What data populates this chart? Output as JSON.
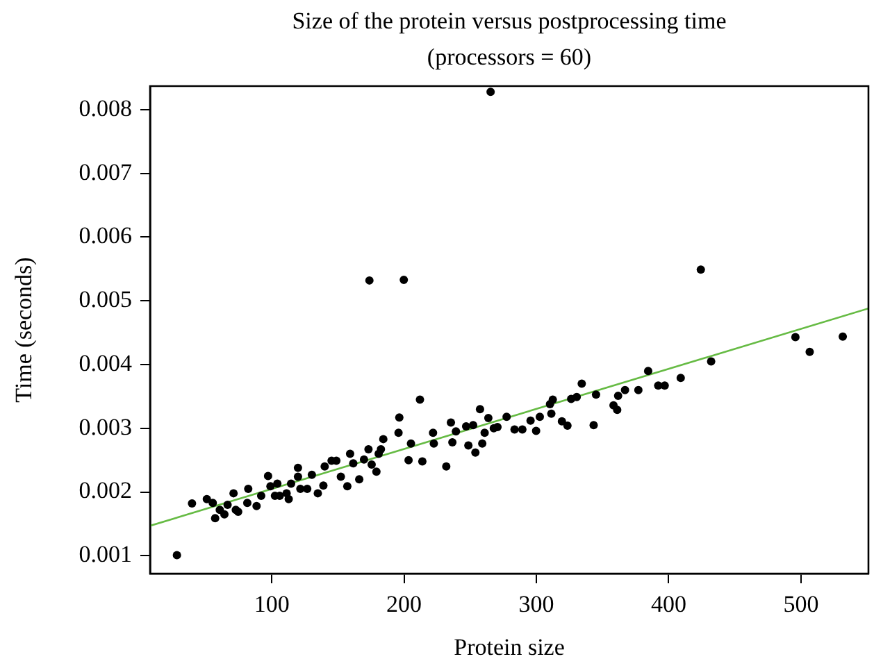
{
  "chart_data": {
    "type": "scatter",
    "title": "Size of the protein versus postprocessing time",
    "subtitle": "(processors = 60)",
    "xlabel": "Protein size",
    "ylabel": "Time (seconds)",
    "xlim": [
      8,
      551
    ],
    "ylim": [
      0.00072,
      0.00837
    ],
    "xticks": [
      100,
      200,
      300,
      400,
      500
    ],
    "yticks": [
      0.001,
      0.002,
      0.003,
      0.004,
      0.005,
      0.006,
      0.007,
      0.008
    ],
    "grid": false,
    "legend": false,
    "marker": "circle",
    "series": [
      {
        "color": "#000000",
        "x": [
          28.3,
          39.7,
          50.9,
          55.4,
          57.2,
          60.7,
          64.2,
          66.6,
          71.1,
          72.8,
          74.6,
          82.2,
          81.5,
          88.5,
          92,
          97.2,
          99,
          102.4,
          106,
          104.2,
          111.2,
          112.8,
          114.6,
          119.8,
          119.8,
          121.6,
          126.8,
          130.3,
          134.8,
          139,
          140,
          145.2,
          148.8,
          152.2,
          157.1,
          159.2,
          161.6,
          166.1,
          169.7,
          173.1,
          175.5,
          179.1,
          180.8,
          184.3,
          182.5,
          212,
          196.4,
          195.8,
          205.2,
          203.4,
          213.8,
          221.9,
          222.5,
          231.9,
          235.4,
          236.5,
          239.2,
          246.9,
          248.6,
          252.2,
          253.9,
          257.4,
          259.1,
          260.9,
          263.7,
          267.8,
          270.6,
          277.5,
          283.5,
          289.4,
          295.6,
          299.8,
          302.6,
          311.3,
          312.4,
          310.3,
          319.3,
          323.5,
          326.3,
          330.5,
          334.3,
          345.1,
          343.3,
          358.3,
          361.1,
          361.8,
          367,
          377.1,
          384.5,
          392.1,
          397,
          409.1,
          432.1,
          495.8,
          506.6,
          531.6,
          173.8,
          199.8,
          265.4,
          424.3
        ],
        "values": [
          0.00101,
          0.00182,
          0.00189,
          0.00183,
          0.00159,
          0.00172,
          0.00165,
          0.0018,
          0.00198,
          0.00172,
          0.00169,
          0.00205,
          0.00183,
          0.00178,
          0.00194,
          0.00225,
          0.00209,
          0.00194,
          0.00194,
          0.00213,
          0.00198,
          0.00189,
          0.00213,
          0.00238,
          0.00224,
          0.00205,
          0.00205,
          0.00227,
          0.00198,
          0.0021,
          0.0024,
          0.00249,
          0.00249,
          0.00224,
          0.00209,
          0.0026,
          0.00245,
          0.0022,
          0.00251,
          0.00267,
          0.00243,
          0.00232,
          0.0026,
          0.00283,
          0.00267,
          0.00345,
          0.00317,
          0.00293,
          0.00276,
          0.0025,
          0.00248,
          0.00293,
          0.00276,
          0.0024,
          0.00309,
          0.00278,
          0.00295,
          0.00303,
          0.00273,
          0.00305,
          0.00262,
          0.0033,
          0.00276,
          0.00293,
          0.00316,
          0.003,
          0.00302,
          0.00318,
          0.00298,
          0.00298,
          0.00312,
          0.00296,
          0.00318,
          0.00323,
          0.00345,
          0.00338,
          0.00311,
          0.00304,
          0.00346,
          0.00349,
          0.0037,
          0.00353,
          0.00305,
          0.00336,
          0.00329,
          0.00351,
          0.0036,
          0.0036,
          0.0039,
          0.00367,
          0.00367,
          0.00379,
          0.00405,
          0.00443,
          0.0042,
          0.00444,
          0.00532,
          0.00533,
          0.00828,
          0.00549
        ]
      },
      {
        "type": "line",
        "color": "#66bb44",
        "marker": "none",
        "x": [
          8,
          551
        ],
        "values": [
          0.00147,
          0.00488
        ]
      }
    ]
  }
}
